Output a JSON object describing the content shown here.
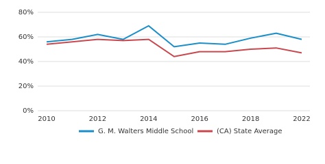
{
  "chart_data": {
    "type": "line",
    "categories": [
      "2010",
      null,
      "2012",
      null,
      "2014",
      null,
      "2016",
      null,
      "2018",
      null,
      "2022"
    ],
    "series": [
      {
        "name": "G. M. Walters Middle School",
        "color": "#1b8ec8",
        "values": [
          56,
          58,
          62,
          58,
          69,
          52,
          55,
          54,
          59,
          63,
          58
        ]
      },
      {
        "name": "(CA) State Average",
        "color": "#c8474d",
        "values": [
          54,
          56,
          58,
          57,
          58,
          44,
          48,
          48,
          50,
          51,
          47
        ]
      }
    ],
    "ylim": [
      0,
      80
    ],
    "yticks": [
      {
        "value": 0,
        "label": "0%"
      },
      {
        "value": 20,
        "label": "20%"
      },
      {
        "value": 40,
        "label": "40%"
      },
      {
        "value": 60,
        "label": "60%"
      },
      {
        "value": 80,
        "label": "80%"
      }
    ],
    "grid": true
  }
}
